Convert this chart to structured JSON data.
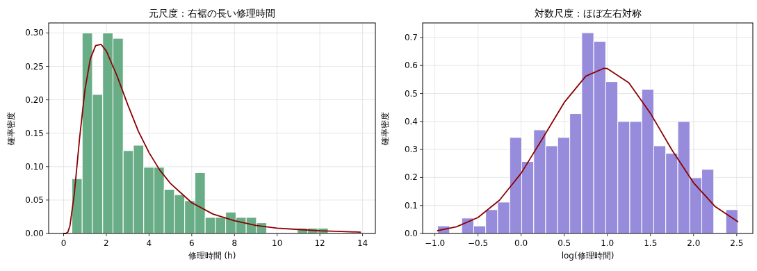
{
  "chart_data": [
    {
      "type": "histogram",
      "title": "元尺度：右裾の長い修理時間",
      "xlabel": "修理時間 (h)",
      "ylabel": "確率密度",
      "grid": true,
      "bins": [
        0.39,
        0.87,
        1.35,
        1.83,
        2.31,
        2.79,
        3.27,
        3.75,
        4.23,
        4.71,
        5.19,
        5.67,
        6.15,
        6.63,
        7.11,
        7.59,
        8.07,
        8.55,
        9.03,
        9.51,
        9.99,
        10.47,
        10.95,
        11.43,
        11.91,
        12.39
      ],
      "series": [
        {
          "color": "#69ad87",
          "values": [
            0.082,
            0.3,
            0.208,
            0.3,
            0.292,
            0.124,
            0.132,
            0.099,
            0.099,
            0.066,
            0.058,
            0.049,
            0.091,
            0.024,
            0.024,
            0.032,
            0.024,
            0.024,
            0.016,
            0,
            0,
            0,
            0.008,
            0.008,
            0.008
          ]
        },
        {
          "type": "line",
          "color": "#8b0000",
          "x": [
            0,
            0.1,
            0.2,
            0.3,
            0.5,
            0.75,
            1,
            1.25,
            1.5,
            1.75,
            2,
            2.5,
            3,
            3.5,
            4,
            4.5,
            5,
            6,
            7,
            8,
            9,
            10,
            11,
            12,
            13,
            13.9
          ],
          "values": [
            0,
            0,
            0.002,
            0.012,
            0.059,
            0.143,
            0.215,
            0.261,
            0.281,
            0.283,
            0.273,
            0.236,
            0.193,
            0.153,
            0.121,
            0.095,
            0.075,
            0.046,
            0.029,
            0.019,
            0.012,
            0.008,
            0.006,
            0.004,
            0.003,
            0.002
          ]
        }
      ],
      "xlim": [
        -0.7,
        14.6
      ],
      "ylim": [
        0,
        0.315
      ],
      "xticks": [
        0,
        2,
        4,
        6,
        8,
        10,
        12,
        14
      ],
      "yticks": [
        {
          "value": 0,
          "label": "0.00"
        },
        {
          "value": 0.05,
          "label": "0.05"
        },
        {
          "value": 0.1,
          "label": "0.10"
        },
        {
          "value": 0.15,
          "label": "0.15"
        },
        {
          "value": 0.2,
          "label": "0.20"
        },
        {
          "value": 0.25,
          "label": "0.25"
        },
        {
          "value": 0.3,
          "label": "0.30"
        }
      ]
    },
    {
      "type": "histogram",
      "title": "対数尺度：ほぼ左右対称",
      "xlabel": "log(修理時間)",
      "ylabel": "確率密度",
      "grid": true,
      "bins": [
        -0.968,
        -0.829,
        -0.689,
        -0.55,
        -0.411,
        -0.272,
        -0.132,
        0.007,
        0.146,
        0.285,
        0.424,
        0.564,
        0.703,
        0.842,
        0.981,
        1.121,
        1.26,
        1.399,
        1.538,
        1.677,
        1.817,
        1.956,
        2.095,
        2.234,
        2.374,
        2.513
      ],
      "series": [
        {
          "color": "#978bdc",
          "values": [
            0.027,
            0,
            0.055,
            0.027,
            0.085,
            0.112,
            0.343,
            0.257,
            0.37,
            0.313,
            0.343,
            0.428,
            0.717,
            0.686,
            0.542,
            0.4,
            0.4,
            0.515,
            0.313,
            0.286,
            0.4,
            0.199,
            0.229,
            0,
            0.085
          ]
        },
        {
          "type": "line",
          "color": "#8b0000",
          "x": [
            -0.968,
            -0.75,
            -0.5,
            -0.25,
            0,
            0.25,
            0.5,
            0.75,
            0.96,
            1,
            1.25,
            1.5,
            1.75,
            2,
            2.25,
            2.513
          ],
          "values": [
            0.01,
            0.024,
            0.057,
            0.119,
            0.215,
            0.34,
            0.468,
            0.562,
            0.59,
            0.589,
            0.538,
            0.429,
            0.298,
            0.181,
            0.096,
            0.042
          ]
        }
      ],
      "xlim": [
        -1.142,
        2.687
      ],
      "ylim": [
        0,
        0.752
      ],
      "xticks": [
        {
          "value": -1,
          "label": "−1.0"
        },
        {
          "value": -0.5,
          "label": "−0.5"
        },
        {
          "value": 0,
          "label": "0.0"
        },
        {
          "value": 0.5,
          "label": "0.5"
        },
        {
          "value": 1,
          "label": "1.0"
        },
        {
          "value": 1.5,
          "label": "1.5"
        },
        {
          "value": 2,
          "label": "2.0"
        },
        {
          "value": 2.5,
          "label": "2.5"
        }
      ],
      "yticks": [
        {
          "value": 0,
          "label": "0.0"
        },
        {
          "value": 0.1,
          "label": "0.1"
        },
        {
          "value": 0.2,
          "label": "0.2"
        },
        {
          "value": 0.3,
          "label": "0.3"
        },
        {
          "value": 0.4,
          "label": "0.4"
        },
        {
          "value": 0.5,
          "label": "0.5"
        },
        {
          "value": 0.6,
          "label": "0.6"
        },
        {
          "value": 0.7,
          "label": "0.7"
        }
      ]
    }
  ]
}
